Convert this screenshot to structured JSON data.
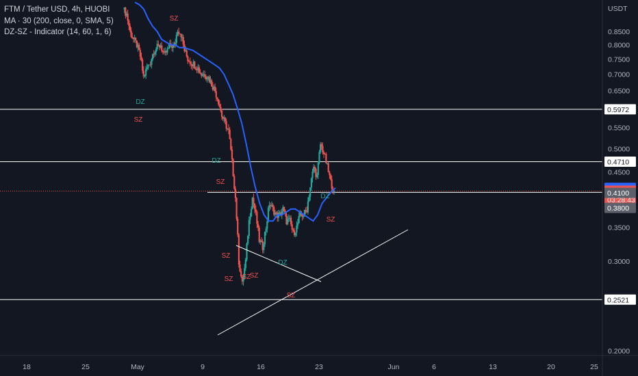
{
  "legend": {
    "symbol_line": "FTM / Tether USD, 4h, HUOBI",
    "ma_line": "MA · 30 (200, close, 0, SMA, 5)",
    "indicator_line": "DZ-SZ - Indicator (14, 60, 1, 6)"
  },
  "colors": {
    "background": "#131722",
    "up": "#26a69a",
    "down": "#ef5350",
    "ma": "#2962ff",
    "lines": "#ffffff",
    "axis_text": "#b2b5be",
    "ma_badge": "#2962ff",
    "price_badge": "#ef5350",
    "level_badge": "#ffffff",
    "gray_badge": "#5d606b"
  },
  "chart_data": {
    "type": "candlestick",
    "title": "FTM / Tether USD, 4h, HUOBI",
    "currency": "USDT",
    "y_scale": "log",
    "ylim": [
      0.19,
      0.97
    ],
    "x_ticks": [
      "18",
      "25",
      "May",
      "9",
      "16",
      "23",
      "Jun",
      "6",
      "13",
      "20",
      "25"
    ],
    "y_ticks": [
      "0.8500",
      "0.8000",
      "0.7500",
      "0.7000",
      "0.6500",
      "0.5500",
      "0.5000",
      "0.4500",
      "0.3500",
      "0.3000",
      "0.2000"
    ],
    "price_path": [
      0.94,
      0.92,
      0.85,
      0.82,
      0.8,
      0.76,
      0.69,
      0.72,
      0.74,
      0.78,
      0.79,
      0.8,
      0.76,
      0.78,
      0.8,
      0.79,
      0.86,
      0.84,
      0.78,
      0.75,
      0.74,
      0.73,
      0.72,
      0.7,
      0.7,
      0.69,
      0.67,
      0.65,
      0.62,
      0.58,
      0.56,
      0.54,
      0.47,
      0.4,
      0.3,
      0.27,
      0.3,
      0.36,
      0.4,
      0.37,
      0.33,
      0.32,
      0.35,
      0.39,
      0.38,
      0.37,
      0.37,
      0.38,
      0.36,
      0.36,
      0.34,
      0.35,
      0.37,
      0.37,
      0.38,
      0.42,
      0.46,
      0.44,
      0.51,
      0.49,
      0.46,
      0.43,
      0.4123
    ],
    "ma_path": [
      0.97,
      0.96,
      0.94,
      0.9,
      0.87,
      0.85,
      0.82,
      0.81,
      0.8,
      0.8,
      0.79,
      0.79,
      0.785,
      0.78,
      0.77,
      0.76,
      0.75,
      0.74,
      0.73,
      0.72,
      0.7,
      0.67,
      0.64,
      0.6,
      0.56,
      0.51,
      0.46,
      0.42,
      0.39,
      0.37,
      0.36,
      0.36,
      0.37,
      0.37,
      0.375,
      0.38,
      0.38,
      0.375,
      0.37,
      0.365,
      0.36,
      0.37,
      0.39,
      0.4,
      0.41,
      0.4184
    ],
    "dz_sz_labels": [
      "SZ",
      "DZ",
      "SZ",
      "DZ",
      "SZ",
      "SZ",
      "SZ",
      "SZ",
      "DZ",
      "SZ",
      "DZ",
      "SZ",
      "SZ"
    ],
    "horizontal_levels": [
      0.5972,
      0.471,
      0.4184,
      0.4123,
      0.41,
      0.38,
      0.2521
    ],
    "badges": [
      {
        "label": "0.5972",
        "kind": "level"
      },
      {
        "label": "0.4710",
        "kind": "level"
      },
      {
        "label": "0.4184",
        "kind": "ma"
      },
      {
        "label": "0.4123",
        "kind": "price",
        "sub": "03:28:43"
      },
      {
        "label": "0.4100",
        "kind": "gray"
      },
      {
        "label": "0.3800",
        "kind": "gray"
      },
      {
        "label": "0.2521",
        "kind": "level"
      }
    ],
    "trend_lines": [
      {
        "name": "rising-support",
        "from": "11 May",
        "to": "31 May"
      },
      {
        "name": "falling-resistance",
        "from": "13 May",
        "to": "22 May"
      }
    ]
  }
}
